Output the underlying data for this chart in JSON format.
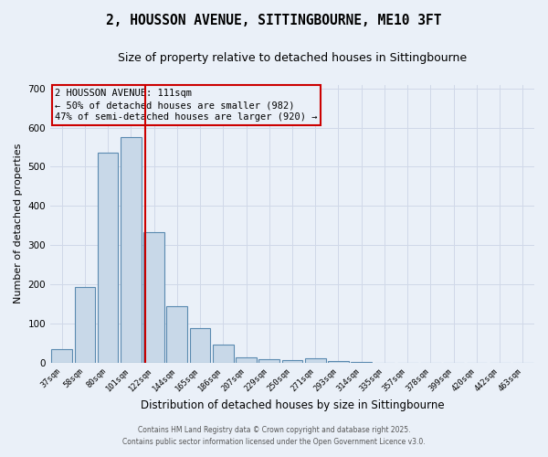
{
  "title": "2, HOUSSON AVENUE, SITTINGBOURNE, ME10 3FT",
  "subtitle": "Size of property relative to detached houses in Sittingbourne",
  "xlabel": "Distribution of detached houses by size in Sittingbourne",
  "ylabel": "Number of detached properties",
  "bar_labels": [
    "37sqm",
    "58sqm",
    "80sqm",
    "101sqm",
    "122sqm",
    "144sqm",
    "165sqm",
    "186sqm",
    "207sqm",
    "229sqm",
    "250sqm",
    "271sqm",
    "293sqm",
    "314sqm",
    "335sqm",
    "357sqm",
    "378sqm",
    "399sqm",
    "420sqm",
    "442sqm",
    "463sqm"
  ],
  "bar_values": [
    35,
    192,
    535,
    575,
    332,
    143,
    87,
    45,
    13,
    8,
    5,
    10,
    3,
    1,
    0,
    0,
    0,
    0,
    0,
    0,
    0
  ],
  "bar_color": "#c8d8e8",
  "bar_edgecolor": "#5a8ab0",
  "vline_x": 3.62,
  "vline_color": "#cc0000",
  "annotation_text": "2 HOUSSON AVENUE: 111sqm\n← 50% of detached houses are smaller (982)\n47% of semi-detached houses are larger (920) →",
  "annotation_box_color": "#cc0000",
  "ylim": [
    0,
    710
  ],
  "yticks": [
    0,
    100,
    200,
    300,
    400,
    500,
    600,
    700
  ],
  "grid_color": "#d0d8e8",
  "background_color": "#eaf0f8",
  "footer_line1": "Contains HM Land Registry data © Crown copyright and database right 2025.",
  "footer_line2": "Contains public sector information licensed under the Open Government Licence v3.0.",
  "title_fontsize": 10.5,
  "subtitle_fontsize": 9,
  "xlabel_fontsize": 8.5,
  "ylabel_fontsize": 8
}
